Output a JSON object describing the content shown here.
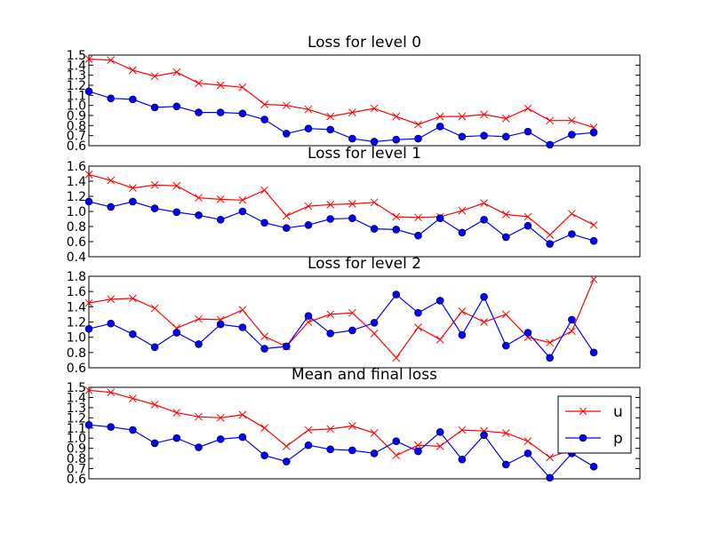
{
  "chart_data": [
    {
      "type": "line",
      "title": "Loss for level 0",
      "xlabel": "",
      "ylabel": "",
      "ylim": [
        0.6,
        1.5
      ],
      "yticks": [
        "0.6",
        "0.7",
        "0.8",
        "0.9",
        "1.0",
        "1.1",
        "1.2",
        "1.3",
        "1.4",
        "1.5"
      ],
      "x": [
        0,
        1,
        2,
        3,
        4,
        5,
        6,
        7,
        8,
        9,
        10,
        11,
        12,
        13,
        14,
        15,
        16,
        17,
        18,
        19,
        20,
        21,
        22,
        23
      ],
      "series": [
        {
          "name": "u",
          "color": "#ff0000",
          "marker": "x",
          "values": [
            1.46,
            1.45,
            1.35,
            1.29,
            1.33,
            1.22,
            1.2,
            1.18,
            1.01,
            1.0,
            0.96,
            0.89,
            0.93,
            0.97,
            0.89,
            0.81,
            0.89,
            0.89,
            0.91,
            0.87,
            0.97,
            0.85,
            0.85,
            0.78
          ]
        },
        {
          "name": "p",
          "color": "#0000ff",
          "marker": "o",
          "values": [
            1.14,
            1.07,
            1.06,
            0.98,
            0.99,
            0.93,
            0.93,
            0.92,
            0.86,
            0.72,
            0.77,
            0.76,
            0.67,
            0.64,
            0.66,
            0.67,
            0.79,
            0.69,
            0.7,
            0.69,
            0.74,
            0.61,
            0.71,
            0.73
          ]
        }
      ]
    },
    {
      "type": "line",
      "title": "Loss for level 1",
      "xlabel": "",
      "ylabel": "",
      "ylim": [
        0.4,
        1.6
      ],
      "yticks": [
        "0.4",
        "0.6",
        "0.8",
        "1.0",
        "1.2",
        "1.4",
        "1.6"
      ],
      "x": [
        0,
        1,
        2,
        3,
        4,
        5,
        6,
        7,
        8,
        9,
        10,
        11,
        12,
        13,
        14,
        15,
        16,
        17,
        18,
        19,
        20,
        21,
        22,
        23
      ],
      "series": [
        {
          "name": "u",
          "color": "#ff0000",
          "marker": "x",
          "values": [
            1.49,
            1.41,
            1.31,
            1.35,
            1.34,
            1.18,
            1.16,
            1.15,
            1.28,
            0.94,
            1.07,
            1.09,
            1.1,
            1.12,
            0.93,
            0.92,
            0.93,
            1.01,
            1.11,
            0.96,
            0.93,
            0.69,
            0.97,
            0.82
          ]
        },
        {
          "name": "p",
          "color": "#0000ff",
          "marker": "o",
          "values": [
            1.13,
            1.06,
            1.13,
            1.04,
            0.99,
            0.95,
            0.89,
            1.0,
            0.85,
            0.78,
            0.82,
            0.9,
            0.91,
            0.77,
            0.76,
            0.68,
            0.91,
            0.72,
            0.89,
            0.66,
            0.81,
            0.57,
            0.7,
            0.61
          ]
        }
      ]
    },
    {
      "type": "line",
      "title": "Loss for level 2",
      "xlabel": "",
      "ylabel": "",
      "ylim": [
        0.6,
        1.8
      ],
      "yticks": [
        "0.6",
        "0.8",
        "1.0",
        "1.2",
        "1.4",
        "1.6",
        "1.8"
      ],
      "x": [
        0,
        1,
        2,
        3,
        4,
        5,
        6,
        7,
        8,
        9,
        10,
        11,
        12,
        13,
        14,
        15,
        16,
        17,
        18,
        19,
        20,
        21,
        22,
        23
      ],
      "series": [
        {
          "name": "u",
          "color": "#ff0000",
          "marker": "x",
          "values": [
            1.45,
            1.5,
            1.51,
            1.38,
            1.12,
            1.24,
            1.23,
            1.36,
            1.01,
            0.88,
            1.2,
            1.3,
            1.32,
            1.05,
            0.73,
            1.13,
            0.97,
            1.34,
            1.2,
            1.3,
            1.0,
            0.93,
            1.08,
            1.76
          ]
        },
        {
          "name": "p",
          "color": "#0000ff",
          "marker": "o",
          "values": [
            1.11,
            1.18,
            1.04,
            0.87,
            1.06,
            0.91,
            1.17,
            1.13,
            0.85,
            0.88,
            1.28,
            1.05,
            1.09,
            1.19,
            1.56,
            1.32,
            1.48,
            1.03,
            1.53,
            0.89,
            1.06,
            0.73,
            1.23,
            0.8
          ]
        }
      ]
    },
    {
      "type": "line",
      "title": "Mean and final loss",
      "xlabel": "",
      "ylabel": "",
      "ylim": [
        0.6,
        1.5
      ],
      "yticks": [
        "0.6",
        "0.7",
        "0.8",
        "0.9",
        "1.0",
        "1.1",
        "1.2",
        "1.3",
        "1.4",
        "1.5"
      ],
      "x": [
        0,
        1,
        2,
        3,
        4,
        5,
        6,
        7,
        8,
        9,
        10,
        11,
        12,
        13,
        14,
        15,
        16,
        17,
        18,
        19,
        20,
        21,
        22,
        23
      ],
      "legend": "top-right",
      "series": [
        {
          "name": "u",
          "color": "#ff0000",
          "marker": "x",
          "values": [
            1.47,
            1.45,
            1.39,
            1.33,
            1.25,
            1.21,
            1.2,
            1.23,
            1.1,
            0.92,
            1.08,
            1.09,
            1.12,
            1.05,
            0.83,
            0.93,
            0.92,
            1.08,
            1.07,
            1.05,
            0.97,
            0.81,
            0.89,
            0.91
          ]
        },
        {
          "name": "p",
          "color": "#0000ff",
          "marker": "o",
          "values": [
            1.13,
            1.11,
            1.08,
            0.95,
            1.0,
            0.91,
            0.99,
            1.01,
            0.83,
            0.77,
            0.93,
            0.89,
            0.88,
            0.85,
            0.97,
            0.87,
            1.06,
            0.79,
            1.03,
            0.74,
            0.85,
            0.61,
            0.85,
            0.72
          ]
        }
      ]
    }
  ]
}
